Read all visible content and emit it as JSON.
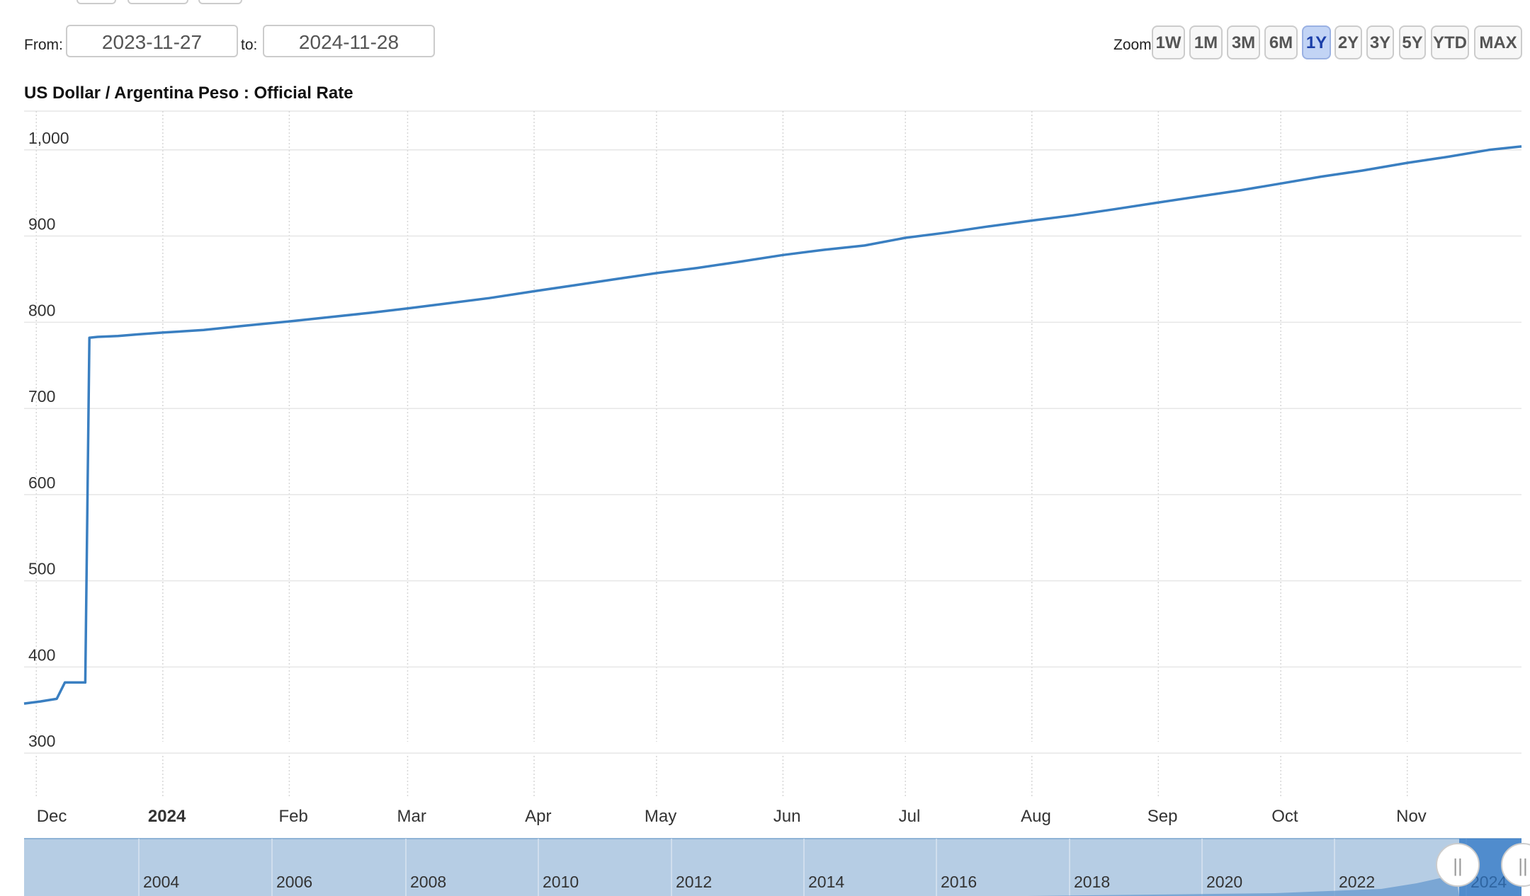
{
  "range_selector": {
    "from_label": "From:",
    "from_value": "2023-11-27",
    "to_label": "to:",
    "to_value": "2024-11-28"
  },
  "zoom": {
    "label": "Zoom:",
    "buttons": [
      "1W",
      "1M",
      "3M",
      "6M",
      "1Y",
      "2Y",
      "3Y",
      "5Y",
      "YTD",
      "MAX"
    ],
    "active": "1Y"
  },
  "colors": {
    "line": "#3a7fc1",
    "active_zoom": "#c2d4f5",
    "navigator_fill": "#b6cde4",
    "navigator_selected": "#2d76c5"
  },
  "chart_data": {
    "type": "line",
    "title": "US Dollar / Argentina Peso : Official Rate",
    "xlabel": "",
    "ylabel": "",
    "x_start": "2023-11-27",
    "x_end": "2024-11-28",
    "ylim": [
      250,
      1045
    ],
    "y_ticks": [
      300,
      400,
      500,
      600,
      700,
      800,
      900,
      1000
    ],
    "y_tick_labels": [
      "300",
      "400",
      "500",
      "600",
      "700",
      "800",
      "900",
      "1,000"
    ],
    "x_ticks": [
      {
        "date": "2023-12-01",
        "label": "Dec",
        "bold": false
      },
      {
        "date": "2024-01-01",
        "label": "2024",
        "bold": true
      },
      {
        "date": "2024-02-01",
        "label": "Feb",
        "bold": false
      },
      {
        "date": "2024-03-01",
        "label": "Mar",
        "bold": false
      },
      {
        "date": "2024-04-01",
        "label": "Apr",
        "bold": false
      },
      {
        "date": "2024-05-01",
        "label": "May",
        "bold": false
      },
      {
        "date": "2024-06-01",
        "label": "Jun",
        "bold": false
      },
      {
        "date": "2024-07-01",
        "label": "Jul",
        "bold": false
      },
      {
        "date": "2024-08-01",
        "label": "Aug",
        "bold": false
      },
      {
        "date": "2024-09-01",
        "label": "Sep",
        "bold": false
      },
      {
        "date": "2024-10-01",
        "label": "Oct",
        "bold": false
      },
      {
        "date": "2024-11-01",
        "label": "Nov",
        "bold": false
      }
    ],
    "grid": true,
    "series": [
      {
        "values": [
          [
            "2023-11-27",
            357.5
          ],
          [
            "2023-12-01",
            360
          ],
          [
            "2023-12-05",
            363
          ],
          [
            "2023-12-07",
            382
          ],
          [
            "2023-12-12",
            382
          ],
          [
            "2023-12-13",
            782
          ],
          [
            "2023-12-15",
            783
          ],
          [
            "2023-12-20",
            784
          ],
          [
            "2023-12-25",
            786
          ],
          [
            "2023-12-31",
            788
          ],
          [
            "2024-01-10",
            791
          ],
          [
            "2024-01-20",
            796
          ],
          [
            "2024-01-31",
            801
          ],
          [
            "2024-02-10",
            806
          ],
          [
            "2024-02-20",
            811
          ],
          [
            "2024-02-29",
            816
          ],
          [
            "2024-03-10",
            822
          ],
          [
            "2024-03-20",
            828
          ],
          [
            "2024-03-31",
            836
          ],
          [
            "2024-04-10",
            843
          ],
          [
            "2024-04-20",
            850
          ],
          [
            "2024-04-30",
            857
          ],
          [
            "2024-05-10",
            863
          ],
          [
            "2024-05-20",
            870
          ],
          [
            "2024-05-31",
            878
          ],
          [
            "2024-06-10",
            884
          ],
          [
            "2024-06-20",
            889
          ],
          [
            "2024-06-30",
            898
          ],
          [
            "2024-07-10",
            904
          ],
          [
            "2024-07-20",
            911
          ],
          [
            "2024-07-31",
            918
          ],
          [
            "2024-08-10",
            924
          ],
          [
            "2024-08-20",
            931
          ],
          [
            "2024-08-31",
            939
          ],
          [
            "2024-09-10",
            946
          ],
          [
            "2024-09-20",
            953
          ],
          [
            "2024-09-30",
            961
          ],
          [
            "2024-10-10",
            969
          ],
          [
            "2024-10-20",
            976
          ],
          [
            "2024-10-31",
            985
          ],
          [
            "2024-11-10",
            992
          ],
          [
            "2024-11-20",
            1000
          ],
          [
            "2024-11-28",
            1004
          ]
        ]
      }
    ]
  },
  "navigator": {
    "year_labels": [
      "2004",
      "2006",
      "2008",
      "2010",
      "2012",
      "2014",
      "2016",
      "2018",
      "2020",
      "2022",
      "2024"
    ],
    "handle_glyph": "||"
  }
}
